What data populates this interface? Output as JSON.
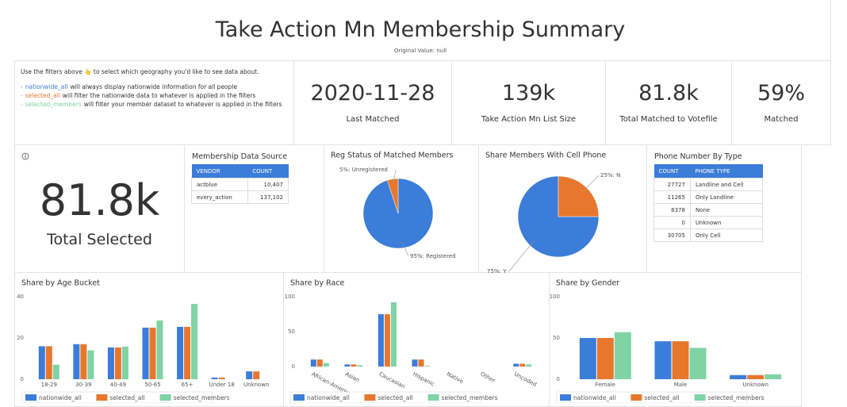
{
  "header": {
    "title": "Take Action Mn Membership Summary",
    "subtitle": "Original Value: null"
  },
  "filters": {
    "intro": "Use the filters above 👆 to select which geography you'd like to see data about.",
    "items": [
      {
        "marker": "-",
        "name": "nationwide_all",
        "color": "#3b7dd8",
        "text": "will always display nationwide information for all people"
      },
      {
        "marker": "-",
        "name": "selected_all",
        "color": "#e8772e",
        "text": "will filter the nationwide data to whatever is applied in the filters"
      },
      {
        "marker": "-",
        "name": "selected_members",
        "color": "#7fd3a5",
        "text": "will filter your member dataset to whatever is applied in the filters"
      }
    ]
  },
  "kpis": [
    {
      "value": "2020-11-28",
      "label": "Last Matched"
    },
    {
      "value": "139k",
      "label": "Take Action Mn List Size"
    },
    {
      "value": "81.8k",
      "label": "Total Matched to Votefile"
    },
    {
      "value": "59%",
      "label": "Matched"
    }
  ],
  "total_selected": {
    "value": "81.8k",
    "label": "Total Selected"
  },
  "tables": [
    {
      "title": "Membership Data Source",
      "columns": [
        "VENDOR",
        "COUNT"
      ],
      "rows": [
        [
          "actblue",
          "10,407"
        ],
        [
          "every_action",
          "137,102"
        ]
      ]
    },
    {
      "title": "Phone Number By Type",
      "columns": [
        "COUNT",
        "PHONE TYPE"
      ],
      "rows": [
        [
          "27727",
          "Landline and Cell"
        ],
        [
          "11265",
          "Only Landline"
        ],
        [
          "8378",
          "None"
        ],
        [
          "0",
          "Unknown"
        ],
        [
          "30705",
          "Only Cell"
        ]
      ]
    }
  ],
  "chart_data": [
    {
      "type": "pie",
      "title": "Reg Status of Matched Members",
      "values": [
        95,
        5
      ],
      "value_labels": [
        "95%: Registered",
        "5%: Unregistered"
      ],
      "colors": [
        "#3b7dd8",
        "#e8772e"
      ]
    },
    {
      "type": "pie",
      "title": "Share Members With Cell Phone",
      "values": [
        75,
        25
      ],
      "value_labels": [
        "75%: Y",
        "25%: N"
      ],
      "colors": [
        "#3b7dd8",
        "#e8772e"
      ]
    },
    {
      "type": "bar",
      "title": "Share by Age Bucket",
      "categories": [
        "18-29",
        "30-39",
        "40-49",
        "50-65",
        "65+",
        "Under 18",
        "Unknown"
      ],
      "ylim": [
        0,
        40
      ],
      "yticks": [
        0,
        20,
        40
      ],
      "series": [
        {
          "name": "nationwide_all",
          "color": "#3b7dd8",
          "values": [
            16,
            17,
            15.4,
            25,
            25.4,
            0.8,
            3.8
          ]
        },
        {
          "name": "selected_all",
          "color": "#e8772e",
          "values": [
            16,
            17,
            15.4,
            25,
            25.4,
            0.8,
            3.8
          ]
        },
        {
          "name": "selected_members",
          "color": "#7fd3a5",
          "values": [
            7,
            14,
            15.8,
            28.5,
            36.5,
            0,
            0
          ]
        }
      ]
    },
    {
      "type": "bar",
      "title": "Share by Race",
      "categories": [
        "African-Americ",
        "Asian",
        "Caucasian",
        "Hispanic",
        "Native",
        "Other",
        "Uncoded"
      ],
      "ylim": [
        0,
        100
      ],
      "yticks": [
        0,
        50,
        100
      ],
      "series": [
        {
          "name": "nationwide_all",
          "color": "#3b7dd8",
          "values": [
            10,
            3,
            75,
            10,
            0,
            0,
            4
          ]
        },
        {
          "name": "selected_all",
          "color": "#e8772e",
          "values": [
            10,
            3,
            75,
            10,
            0,
            0,
            4
          ]
        },
        {
          "name": "selected_members",
          "color": "#7fd3a5",
          "values": [
            5,
            2,
            92,
            1,
            0,
            0,
            3
          ]
        }
      ]
    },
    {
      "type": "bar",
      "title": "Share by Gender",
      "categories": [
        "Female",
        "Male",
        "Unknown"
      ],
      "ylim": [
        0,
        100
      ],
      "yticks": [
        0,
        50,
        100
      ],
      "series": [
        {
          "name": "nationwide_all",
          "color": "#3b7dd8",
          "values": [
            50,
            46,
            5
          ]
        },
        {
          "name": "selected_all",
          "color": "#e8772e",
          "values": [
            50,
            46,
            5
          ]
        },
        {
          "name": "selected_members",
          "color": "#7fd3a5",
          "values": [
            57,
            38,
            6
          ]
        }
      ]
    }
  ]
}
